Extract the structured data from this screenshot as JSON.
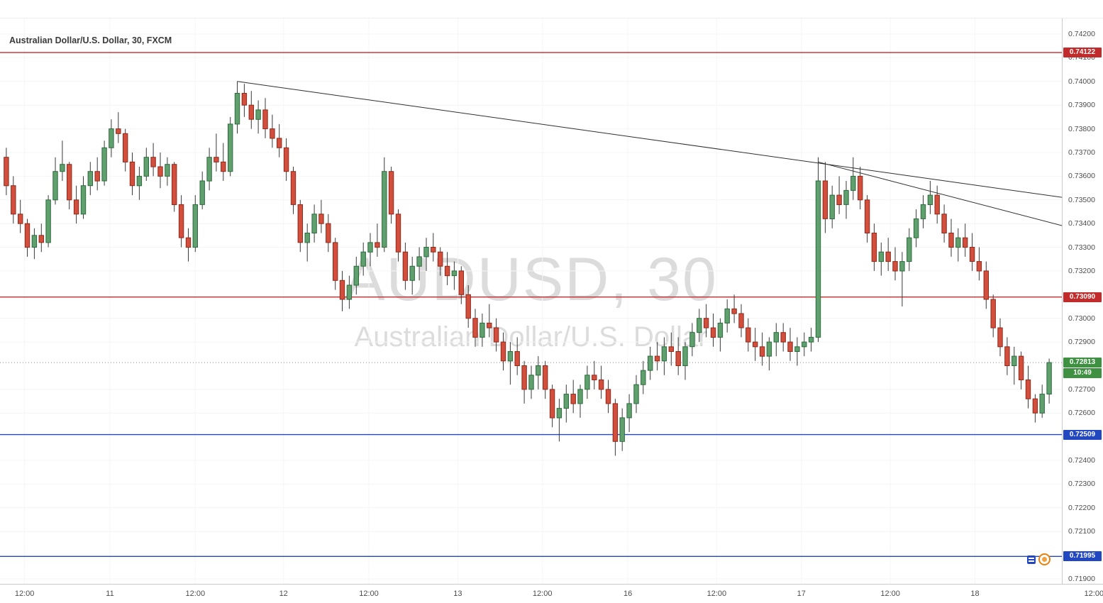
{
  "meta": {
    "legend": "Australian Dollar/U.S. Dollar, 30, FXCM"
  },
  "watermark": {
    "line1": "AUDUSD, 30",
    "line2": "Australian Dollar/U.S. Dollar"
  },
  "colors": {
    "up": "#5fa06e",
    "up_border": "#2d6b3c",
    "down": "#d14f3c",
    "down_border": "#8f2a1c",
    "wick": "#3a3a3a",
    "trend": "#2e2e2e",
    "red_line": "#c22b2b",
    "blue_line": "#2148c0",
    "last_green": "#3f9142",
    "axis_text": "#4d4d4d",
    "watermark": "#dcdcdc"
  },
  "chart_data": {
    "type": "candlestick",
    "symbol": "AUDUSD",
    "interval": "30",
    "exchange": "FXCM",
    "title": "Australian Dollar/U.S. Dollar, 30, FXCM",
    "ylim": [
      0.71879,
      0.74266
    ],
    "grid": "faint",
    "price_ticks": [
      "0.74200",
      "0.74100",
      "0.74000",
      "0.73900",
      "0.73800",
      "0.73700",
      "0.73600",
      "0.73500",
      "0.73400",
      "0.73300",
      "0.73200",
      "0.73000",
      "0.72900",
      "0.72700",
      "0.72600",
      "0.72400",
      "0.72300",
      "0.72200",
      "0.72100",
      "0.71900"
    ],
    "time_ticks": [
      {
        "label": "12:00",
        "i": 2.6
      },
      {
        "label": "11",
        "i": 14.8
      },
      {
        "label": "12:00",
        "i": 27.0
      },
      {
        "label": "12",
        "i": 39.6
      },
      {
        "label": "12:00",
        "i": 51.8
      },
      {
        "label": "13",
        "i": 64.5
      },
      {
        "label": "12:00",
        "i": 76.6
      },
      {
        "label": "16",
        "i": 88.8
      },
      {
        "label": "12:00",
        "i": 101.5
      },
      {
        "label": "17",
        "i": 113.6
      },
      {
        "label": "12:00",
        "i": 126.3
      },
      {
        "label": "18",
        "i": 138.4
      },
      {
        "label": "12:00",
        "i": 155.4
      }
    ],
    "price_lines": [
      {
        "label": "0.74122",
        "price": 0.74122,
        "color": "#c22b2b"
      },
      {
        "label": "0.73090",
        "price": 0.7309,
        "color": "#c22b2b"
      },
      {
        "label": "0.72509",
        "price": 0.72509,
        "color": "#2148c0"
      },
      {
        "label": "0.71995",
        "price": 0.71995,
        "color": "#2148c0"
      }
    ],
    "current": {
      "label": "0.72813",
      "price": 0.72813,
      "countdown": "10:49",
      "color": "#3f9142"
    },
    "trend_lines": [
      {
        "i1": 33,
        "p1": 0.74,
        "i2": 151,
        "p2": 0.7351
      },
      {
        "i1": 116,
        "p1": 0.7366,
        "i2": 151,
        "p2": 0.7339
      }
    ],
    "candles": [
      [
        0.7368,
        0.7372,
        0.7352,
        0.7356
      ],
      [
        0.7356,
        0.736,
        0.734,
        0.7344
      ],
      [
        0.7344,
        0.735,
        0.7336,
        0.734
      ],
      [
        0.734,
        0.7342,
        0.7326,
        0.733
      ],
      [
        0.733,
        0.7338,
        0.7325,
        0.7335
      ],
      [
        0.7335,
        0.734,
        0.7328,
        0.7332
      ],
      [
        0.7332,
        0.7352,
        0.733,
        0.735
      ],
      [
        0.735,
        0.7368,
        0.7348,
        0.7362
      ],
      [
        0.7362,
        0.7375,
        0.7358,
        0.7365
      ],
      [
        0.7365,
        0.7366,
        0.7346,
        0.735
      ],
      [
        0.735,
        0.7356,
        0.734,
        0.7344
      ],
      [
        0.7344,
        0.736,
        0.7342,
        0.7356
      ],
      [
        0.7356,
        0.7366,
        0.7352,
        0.7362
      ],
      [
        0.7362,
        0.7368,
        0.7354,
        0.7358
      ],
      [
        0.7358,
        0.7375,
        0.7356,
        0.7372
      ],
      [
        0.7372,
        0.7384,
        0.7368,
        0.738
      ],
      [
        0.738,
        0.7387,
        0.7374,
        0.7378
      ],
      [
        0.7378,
        0.738,
        0.7362,
        0.7366
      ],
      [
        0.7366,
        0.737,
        0.7352,
        0.7356
      ],
      [
        0.7356,
        0.7364,
        0.735,
        0.736
      ],
      [
        0.736,
        0.7372,
        0.7358,
        0.7368
      ],
      [
        0.7368,
        0.7374,
        0.736,
        0.7364
      ],
      [
        0.7364,
        0.737,
        0.7355,
        0.736
      ],
      [
        0.736,
        0.7368,
        0.7356,
        0.7365
      ],
      [
        0.7365,
        0.7366,
        0.7345,
        0.7348
      ],
      [
        0.7348,
        0.7352,
        0.733,
        0.7334
      ],
      [
        0.7334,
        0.7338,
        0.7324,
        0.733
      ],
      [
        0.733,
        0.7352,
        0.7328,
        0.7348
      ],
      [
        0.7348,
        0.7362,
        0.7346,
        0.7358
      ],
      [
        0.7358,
        0.7372,
        0.7354,
        0.7368
      ],
      [
        0.7368,
        0.7378,
        0.7362,
        0.7366
      ],
      [
        0.7366,
        0.7374,
        0.7358,
        0.7362
      ],
      [
        0.7362,
        0.7385,
        0.736,
        0.7382
      ],
      [
        0.7382,
        0.74,
        0.7378,
        0.7395
      ],
      [
        0.7395,
        0.7399,
        0.7385,
        0.739
      ],
      [
        0.739,
        0.7396,
        0.738,
        0.7384
      ],
      [
        0.7384,
        0.7392,
        0.7378,
        0.7388
      ],
      [
        0.7388,
        0.7393,
        0.7376,
        0.738
      ],
      [
        0.738,
        0.7386,
        0.7372,
        0.7376
      ],
      [
        0.7376,
        0.7382,
        0.7368,
        0.7372
      ],
      [
        0.7372,
        0.7376,
        0.7358,
        0.7362
      ],
      [
        0.7362,
        0.7364,
        0.7344,
        0.7348
      ],
      [
        0.7348,
        0.735,
        0.7328,
        0.7332
      ],
      [
        0.7332,
        0.734,
        0.7324,
        0.7336
      ],
      [
        0.7336,
        0.7348,
        0.7332,
        0.7344
      ],
      [
        0.7344,
        0.735,
        0.7336,
        0.734
      ],
      [
        0.734,
        0.7344,
        0.7328,
        0.7332
      ],
      [
        0.7332,
        0.7334,
        0.7312,
        0.7316
      ],
      [
        0.7316,
        0.732,
        0.7303,
        0.7308
      ],
      [
        0.7308,
        0.7318,
        0.7304,
        0.7314
      ],
      [
        0.7314,
        0.7326,
        0.731,
        0.7322
      ],
      [
        0.7322,
        0.7332,
        0.7318,
        0.7328
      ],
      [
        0.7328,
        0.7336,
        0.7322,
        0.7332
      ],
      [
        0.7332,
        0.734,
        0.7326,
        0.733
      ],
      [
        0.733,
        0.7368,
        0.7328,
        0.7362
      ],
      [
        0.7362,
        0.7364,
        0.734,
        0.7344
      ],
      [
        0.7344,
        0.7346,
        0.7324,
        0.7328
      ],
      [
        0.7328,
        0.7332,
        0.7312,
        0.7316
      ],
      [
        0.7316,
        0.7326,
        0.731,
        0.7322
      ],
      [
        0.7322,
        0.733,
        0.7316,
        0.7326
      ],
      [
        0.7326,
        0.7334,
        0.732,
        0.733
      ],
      [
        0.733,
        0.7336,
        0.7324,
        0.7328
      ],
      [
        0.7328,
        0.733,
        0.7318,
        0.7322
      ],
      [
        0.7322,
        0.7328,
        0.7314,
        0.7318
      ],
      [
        0.7318,
        0.7324,
        0.7312,
        0.732
      ],
      [
        0.732,
        0.7322,
        0.7306,
        0.731
      ],
      [
        0.731,
        0.7314,
        0.7296,
        0.73
      ],
      [
        0.73,
        0.7304,
        0.7288,
        0.7292
      ],
      [
        0.7292,
        0.7302,
        0.7288,
        0.7298
      ],
      [
        0.7298,
        0.7306,
        0.7292,
        0.7296
      ],
      [
        0.7296,
        0.73,
        0.7286,
        0.729
      ],
      [
        0.729,
        0.7294,
        0.7278,
        0.7282
      ],
      [
        0.7282,
        0.729,
        0.7272,
        0.7286
      ],
      [
        0.7286,
        0.7292,
        0.7276,
        0.728
      ],
      [
        0.728,
        0.7282,
        0.7264,
        0.727
      ],
      [
        0.727,
        0.728,
        0.7266,
        0.7276
      ],
      [
        0.7276,
        0.7284,
        0.727,
        0.728
      ],
      [
        0.728,
        0.7282,
        0.7266,
        0.727
      ],
      [
        0.727,
        0.7272,
        0.7254,
        0.7258
      ],
      [
        0.7258,
        0.7266,
        0.7248,
        0.7262
      ],
      [
        0.7262,
        0.7272,
        0.7256,
        0.7268
      ],
      [
        0.7268,
        0.7274,
        0.726,
        0.7264
      ],
      [
        0.7264,
        0.7272,
        0.7258,
        0.727
      ],
      [
        0.727,
        0.728,
        0.7266,
        0.7276
      ],
      [
        0.7276,
        0.7282,
        0.727,
        0.7274
      ],
      [
        0.7274,
        0.728,
        0.7266,
        0.727
      ],
      [
        0.727,
        0.7274,
        0.726,
        0.7264
      ],
      [
        0.7264,
        0.7266,
        0.7242,
        0.7248
      ],
      [
        0.7248,
        0.7262,
        0.7244,
        0.7258
      ],
      [
        0.7258,
        0.7268,
        0.7252,
        0.7264
      ],
      [
        0.7264,
        0.7276,
        0.726,
        0.7272
      ],
      [
        0.7272,
        0.7282,
        0.7268,
        0.7278
      ],
      [
        0.7278,
        0.7288,
        0.7274,
        0.7284
      ],
      [
        0.7284,
        0.729,
        0.7278,
        0.7282
      ],
      [
        0.7282,
        0.7292,
        0.7276,
        0.7288
      ],
      [
        0.7288,
        0.7294,
        0.728,
        0.7286
      ],
      [
        0.7286,
        0.7292,
        0.7276,
        0.728
      ],
      [
        0.728,
        0.729,
        0.7274,
        0.7288
      ],
      [
        0.7288,
        0.7298,
        0.7284,
        0.7294
      ],
      [
        0.7294,
        0.7304,
        0.729,
        0.73
      ],
      [
        0.73,
        0.7306,
        0.7292,
        0.7296
      ],
      [
        0.7296,
        0.7302,
        0.7288,
        0.7292
      ],
      [
        0.7292,
        0.73,
        0.7286,
        0.7298
      ],
      [
        0.7298,
        0.7308,
        0.7294,
        0.7304
      ],
      [
        0.7304,
        0.731,
        0.7298,
        0.7302
      ],
      [
        0.7302,
        0.7306,
        0.7292,
        0.7296
      ],
      [
        0.7296,
        0.73,
        0.7286,
        0.729
      ],
      [
        0.729,
        0.7296,
        0.7282,
        0.7288
      ],
      [
        0.7288,
        0.7294,
        0.728,
        0.7284
      ],
      [
        0.7284,
        0.7292,
        0.7278,
        0.729
      ],
      [
        0.729,
        0.7298,
        0.7284,
        0.7294
      ],
      [
        0.7294,
        0.7298,
        0.7286,
        0.729
      ],
      [
        0.729,
        0.7296,
        0.7282,
        0.7286
      ],
      [
        0.7286,
        0.7292,
        0.728,
        0.7288
      ],
      [
        0.7288,
        0.7294,
        0.7284,
        0.729
      ],
      [
        0.729,
        0.7296,
        0.7286,
        0.7292
      ],
      [
        0.7292,
        0.7368,
        0.729,
        0.7358
      ],
      [
        0.7358,
        0.7366,
        0.7336,
        0.7342
      ],
      [
        0.7342,
        0.7356,
        0.7338,
        0.7352
      ],
      [
        0.7352,
        0.736,
        0.7344,
        0.7348
      ],
      [
        0.7348,
        0.7358,
        0.7342,
        0.7354
      ],
      [
        0.7354,
        0.7368,
        0.735,
        0.736
      ],
      [
        0.736,
        0.7364,
        0.7346,
        0.735
      ],
      [
        0.735,
        0.7352,
        0.7332,
        0.7336
      ],
      [
        0.7336,
        0.734,
        0.732,
        0.7324
      ],
      [
        0.7324,
        0.7332,
        0.7318,
        0.7328
      ],
      [
        0.7328,
        0.7334,
        0.732,
        0.7324
      ],
      [
        0.7324,
        0.733,
        0.7316,
        0.732
      ],
      [
        0.732,
        0.7328,
        0.7305,
        0.7324
      ],
      [
        0.7324,
        0.7338,
        0.732,
        0.7334
      ],
      [
        0.7334,
        0.7346,
        0.733,
        0.7342
      ],
      [
        0.7342,
        0.7352,
        0.7338,
        0.7348
      ],
      [
        0.7348,
        0.7358,
        0.7344,
        0.7352
      ],
      [
        0.7352,
        0.7356,
        0.734,
        0.7344
      ],
      [
        0.7344,
        0.7348,
        0.7332,
        0.7336
      ],
      [
        0.7336,
        0.7342,
        0.7326,
        0.733
      ],
      [
        0.733,
        0.7338,
        0.7324,
        0.7334
      ],
      [
        0.7334,
        0.734,
        0.7326,
        0.733
      ],
      [
        0.733,
        0.7336,
        0.732,
        0.7324
      ],
      [
        0.7324,
        0.733,
        0.7316,
        0.732
      ],
      [
        0.732,
        0.7324,
        0.7304,
        0.7308
      ],
      [
        0.7308,
        0.731,
        0.7292,
        0.7296
      ],
      [
        0.7296,
        0.73,
        0.7284,
        0.7288
      ],
      [
        0.7288,
        0.7292,
        0.7276,
        0.728
      ],
      [
        0.728,
        0.7288,
        0.7272,
        0.7284
      ],
      [
        0.7284,
        0.7286,
        0.727,
        0.7274
      ],
      [
        0.7274,
        0.728,
        0.7262,
        0.7266
      ],
      [
        0.7266,
        0.7268,
        0.7256,
        0.726
      ],
      [
        0.726,
        0.7272,
        0.7258,
        0.7268
      ],
      [
        0.7268,
        0.7283,
        0.7264,
        0.72813
      ]
    ]
  },
  "icons": [
    {
      "name": "idea-marker-icon",
      "color": "#2148c0"
    },
    {
      "name": "event-marker-icon",
      "color": "#e8820c"
    }
  ]
}
